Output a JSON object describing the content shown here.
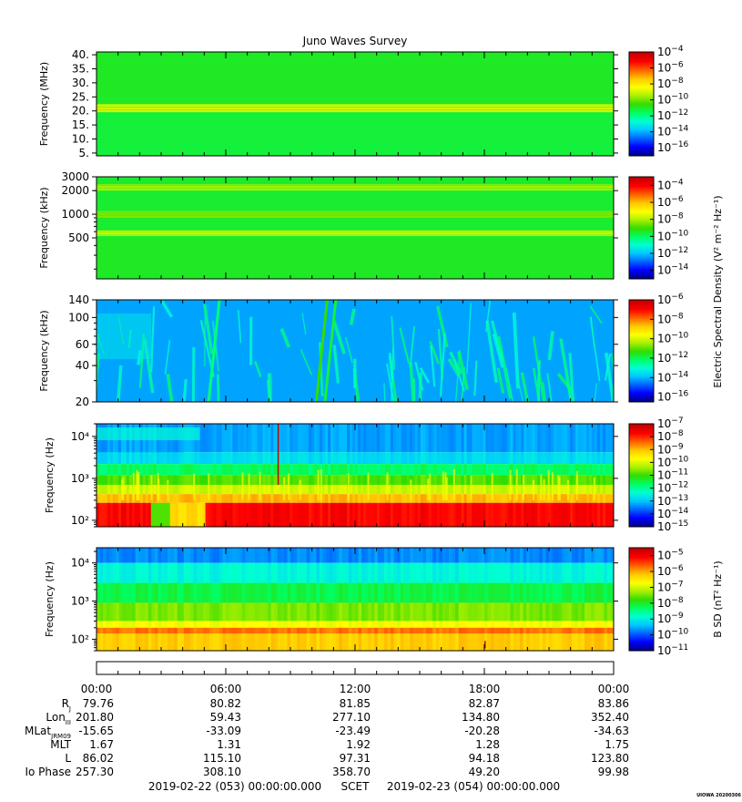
{
  "chart_data": {
    "type": "heatmap",
    "title": "Juno Waves Survey",
    "panels": [
      {
        "ylabel": "Frequency (MHz)",
        "yscale": "linear",
        "ylim": [
          4,
          41
        ],
        "yticks": [
          5,
          10,
          15,
          20,
          25,
          30,
          35,
          40
        ],
        "ytick_labels": [
          "5.",
          "10.",
          "15.",
          "20.",
          "25.",
          "30.",
          "35.",
          "40."
        ],
        "colorbar": {
          "label": "",
          "log_range": [
            -17,
            -4
          ],
          "tick_exponents": [
            -4,
            -6,
            -8,
            -10,
            -12,
            -14,
            -16
          ]
        },
        "bands": [
          {
            "y_range": [
              4,
              7
            ],
            "level": 0.45
          },
          {
            "y_range": [
              7,
              19
            ],
            "level": 0.45
          },
          {
            "y_range": [
              19.5,
              22.5
            ],
            "level": 0.62
          },
          {
            "y_range": [
              22.5,
              41
            ],
            "level": 0.47
          }
        ]
      },
      {
        "ylabel": "Frequency (kHz)",
        "yscale": "log",
        "ylim": [
          150,
          3000
        ],
        "yticks": [
          500,
          1000,
          2000,
          3000
        ],
        "ytick_labels": [
          "500",
          "1000",
          "2000",
          "3000"
        ],
        "colorbar": {
          "label": "",
          "log_range": [
            -15,
            -3
          ],
          "tick_exponents": [
            -4,
            -6,
            -8,
            -10,
            -12,
            -14
          ]
        },
        "bands": [
          {
            "y_range": [
              150,
              500
            ],
            "level": 0.47
          },
          {
            "y_range": [
              530,
              620
            ],
            "level": 0.62
          },
          {
            "y_range": [
              900,
              1100
            ],
            "level": 0.55
          },
          {
            "y_range": [
              2000,
              2400
            ],
            "level": 0.58
          },
          {
            "y_range": [
              620,
              3000
            ],
            "level": 0.5
          }
        ]
      },
      {
        "ylabel": "Frequency (kHz)",
        "yscale": "log",
        "ylim": [
          20,
          140
        ],
        "yticks": [
          20,
          40,
          60,
          100,
          140
        ],
        "ytick_labels": [
          "20",
          "40",
          "60",
          "100",
          "140"
        ],
        "colorbar": {
          "label": "Electric Spectral Density (V² m⁻² Hz⁻¹)",
          "log_range": [
            -16.5,
            -6
          ],
          "tick_exponents": [
            -6,
            -8,
            -10,
            -12,
            -14,
            -16
          ]
        },
        "background_level": 0.22
      },
      {
        "ylabel": "Frequency (Hz)",
        "yscale": "log",
        "ylim": [
          70,
          20000
        ],
        "yticks": [
          100,
          1000,
          10000
        ],
        "ytick_labels": [
          "10²",
          "10³",
          "10⁴"
        ],
        "colorbar": {
          "label": "",
          "log_range": [
            -15,
            -7
          ],
          "tick_exponents": [
            -7,
            -8,
            -9,
            -10,
            -11,
            -12,
            -13,
            -14,
            -15
          ]
        }
      },
      {
        "ylabel": "Frequency (Hz)",
        "yscale": "log",
        "ylim": [
          50,
          25000
        ],
        "yticks": [
          100,
          1000,
          10000
        ],
        "ytick_labels": [
          "10²",
          "10³",
          "10⁴"
        ],
        "colorbar": {
          "label": "B SD (nT² Hz⁻¹)",
          "log_range": [
            -11,
            -4.5
          ],
          "tick_exponents": [
            -5,
            -6,
            -7,
            -8,
            -9,
            -10,
            -11
          ]
        }
      }
    ],
    "x_ticks": [
      "00:00",
      "06:00",
      "12:00",
      "18:00",
      "00:00"
    ],
    "x_range_hours": [
      0,
      24
    ],
    "ephemeris": [
      {
        "label": "R",
        "sub": "J",
        "values": [
          "79.76",
          "80.82",
          "81.85",
          "82.87",
          "83.86"
        ]
      },
      {
        "label": "Lon",
        "sub": "III",
        "values": [
          "201.80",
          "59.43",
          "277.10",
          "134.80",
          "352.40"
        ]
      },
      {
        "label": "MLat",
        "sub": "JRM09",
        "values": [
          "-15.65",
          "-33.09",
          "-23.49",
          "-20.28",
          "-34.63"
        ]
      },
      {
        "label": "MLT",
        "sub": "",
        "values": [
          "1.67",
          "1.31",
          "1.92",
          "1.28",
          "1.75"
        ]
      },
      {
        "label": "L",
        "sub": "",
        "values": [
          "86.02",
          "115.10",
          "97.31",
          "94.18",
          "123.80"
        ]
      },
      {
        "label": "Io Phase",
        "sub": "",
        "values": [
          "257.30",
          "308.10",
          "358.70",
          "49.20",
          "99.98"
        ]
      }
    ],
    "footer": {
      "start": "2019-02-22 (053) 00:00:00.000",
      "scet": "SCET",
      "end": "2019-02-23 (054) 00:00:00.000"
    },
    "stamp": "UIOWA 20200306",
    "colormap": [
      "#00008c",
      "#0000ff",
      "#0064ff",
      "#00c8ff",
      "#00ffd2",
      "#00ff64",
      "#32dc00",
      "#aaf000",
      "#ffff00",
      "#ffc800",
      "#ff6400",
      "#ff0000",
      "#c80000"
    ]
  }
}
